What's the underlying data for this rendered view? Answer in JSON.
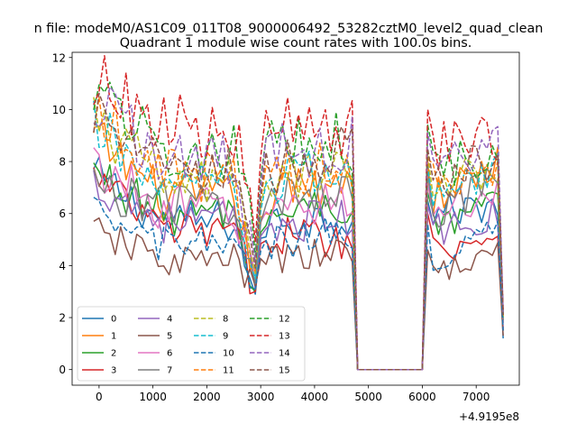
{
  "chart_data": {
    "type": "line",
    "suptitle": "n file: modeM0/AS1C09_011T08_9000006492_53282cztM0_level2_quad_clean",
    "title": "Quadrant 1 module wise count rates with 100.0s bins.",
    "xlabel": "",
    "ylabel": "",
    "offset_text": "+4.9195e8",
    "xlim": [
      -500,
      7800
    ],
    "ylim": [
      -0.6,
      12.2
    ],
    "xticks": [
      0,
      1000,
      2000,
      3000,
      4000,
      5000,
      6000,
      7000
    ],
    "yticks": [
      0,
      2,
      4,
      6,
      8,
      10,
      12
    ],
    "x": {
      "start": -100,
      "step": 100,
      "on_from": -100,
      "on_to": 4700,
      "zero_from": 4800,
      "zero_to": 6000,
      "on2_from": 6100,
      "on2_to": 7400,
      "end": 7500
    },
    "legend": {
      "location": "lower-left",
      "ncol": 4
    },
    "series": [
      {
        "name": "0",
        "color": "#1f77b4",
        "dash": "solid",
        "start": 7.5,
        "level": 5.7,
        "dip": 2.9,
        "end_level": 5.9,
        "mod_start": 6.0,
        "mod_end": 6.4,
        "resume": 6.5,
        "final": 1.2
      },
      {
        "name": "1",
        "color": "#ff7f0e",
        "dash": "solid",
        "start": 9.0,
        "level": 6.6,
        "dip": 3.4,
        "end_level": 7.5,
        "mod_start": 6.5,
        "mod_end": 7.9,
        "resume": 8.0,
        "final": 2.0
      },
      {
        "name": "2",
        "color": "#2ca02c",
        "dash": "solid",
        "start": 7.6,
        "level": 6.0,
        "dip": 3.0,
        "end_level": 6.4,
        "mod_start": 5.3,
        "mod_end": 6.5,
        "resume": 6.8,
        "final": 1.8
      },
      {
        "name": "3",
        "color": "#d62728",
        "dash": "solid",
        "start": 7.4,
        "level": 5.3,
        "dip": 3.0,
        "end_level": 5.0,
        "mod_start": 4.6,
        "mod_end": 5.2,
        "resume": 6.0,
        "final": 1.5
      },
      {
        "name": "4",
        "color": "#9467bd",
        "dash": "solid",
        "start": 7.2,
        "level": 5.7,
        "dip": 3.1,
        "end_level": 5.8,
        "mod_start": 5.2,
        "mod_end": 6.0,
        "resume": 6.3,
        "final": 1.6
      },
      {
        "name": "5",
        "color": "#8c564b",
        "dash": "solid",
        "start": 5.3,
        "level": 4.2,
        "dip": 3.2,
        "end_level": 4.5,
        "mod_start": 3.8,
        "mod_end": 4.4,
        "resume": 4.6,
        "final": 1.3
      },
      {
        "name": "6",
        "color": "#e377c2",
        "dash": "solid",
        "start": 7.9,
        "level": 6.2,
        "dip": 3.6,
        "end_level": 6.6,
        "mod_start": 5.8,
        "mod_end": 7.0,
        "resume": 7.2,
        "final": 1.8
      },
      {
        "name": "7",
        "color": "#7f7f7f",
        "dash": "solid",
        "start": 7.0,
        "level": 6.4,
        "dip": 3.3,
        "end_level": 7.2,
        "mod_start": 6.0,
        "mod_end": 7.2,
        "resume": 7.6,
        "final": 1.9
      },
      {
        "name": "8",
        "color": "#bcbd22",
        "dash": "dashed",
        "start": 9.6,
        "level": 7.2,
        "dip": 3.7,
        "end_level": 8.2,
        "mod_start": 6.9,
        "mod_end": 7.8,
        "resume": 8.3,
        "final": 2.0
      },
      {
        "name": "9",
        "color": "#17becf",
        "dash": "dashed",
        "start": 9.4,
        "level": 7.0,
        "dip": 3.5,
        "end_level": 7.8,
        "mod_start": 6.7,
        "mod_end": 7.5,
        "resume": 7.8,
        "final": 2.0
      },
      {
        "name": "10",
        "color": "#1f77b4",
        "dash": "dashed",
        "start": 5.9,
        "level": 4.8,
        "dip": 3.1,
        "end_level": 5.3,
        "mod_start": 4.2,
        "mod_end": 5.4,
        "resume": 5.6,
        "final": 1.5
      },
      {
        "name": "11",
        "color": "#ff7f0e",
        "dash": "dashed",
        "start": 10.1,
        "level": 7.5,
        "dip": 3.8,
        "end_level": 7.9,
        "mod_start": 7.0,
        "mod_end": 8.0,
        "resume": 8.1,
        "final": 2.1
      },
      {
        "name": "12",
        "color": "#2ca02c",
        "dash": "dashed",
        "start": 11.0,
        "level": 8.4,
        "dip": 4.4,
        "end_level": 8.8,
        "mod_start": 7.6,
        "mod_end": 8.5,
        "resume": 9.4,
        "final": 2.2
      },
      {
        "name": "13",
        "color": "#d62728",
        "dash": "dashed",
        "start": 11.2,
        "level": 9.3,
        "dip": 4.9,
        "end_level": 9.1,
        "mod_start": 8.4,
        "mod_end": 9.0,
        "resume": 10.0,
        "final": 2.3
      },
      {
        "name": "14",
        "color": "#9467bd",
        "dash": "dashed",
        "start": 10.3,
        "level": 8.2,
        "dip": 4.1,
        "end_level": 8.7,
        "mod_start": 7.7,
        "mod_end": 8.8,
        "resume": 9.1,
        "final": 2.2
      },
      {
        "name": "15",
        "color": "#8c564b",
        "dash": "dashed",
        "start": 9.8,
        "level": 7.6,
        "dip": 3.9,
        "end_level": 8.4,
        "mod_start": 7.1,
        "mod_end": 8.2,
        "resume": 8.5,
        "final": 2.1
      }
    ]
  }
}
